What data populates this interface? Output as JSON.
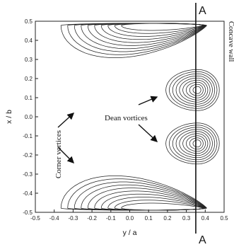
{
  "chart_data": {
    "type": "contour",
    "xlabel": "y / a",
    "ylabel": "x / b",
    "xlim": [
      -0.5,
      0.5
    ],
    "ylim": [
      -0.5,
      0.5
    ],
    "x_ticks": [
      "-0.5",
      "-0.4",
      "-0.3",
      "-0.2",
      "-0.1",
      "0.0",
      "0.1",
      "0.2",
      "0.3",
      "0.4",
      "0.5"
    ],
    "y_ticks": [
      "0.5",
      "0.4",
      "0.3",
      "0.2",
      "0.1",
      "0.0",
      "-0.1",
      "-0.2",
      "-0.3",
      "-0.4",
      "-0.5"
    ],
    "grid": false,
    "section_line": {
      "y_over_a": 0.35,
      "label_top": "A",
      "label_bottom": "A"
    },
    "wall_label": "Concave wall",
    "annotations": [
      {
        "text": "Corner vortices",
        "orientation": "vertical"
      },
      {
        "text": "Dean vortices",
        "orientation": "horizontal"
      }
    ],
    "vortex_centers": [
      {
        "name": "corner-vortex-upper",
        "y_over_a": 0.2,
        "x_over_b": 0.42
      },
      {
        "name": "corner-vortex-lower",
        "y_over_a": 0.2,
        "x_over_b": -0.42
      },
      {
        "name": "dean-vortex-upper",
        "y_over_a": 0.36,
        "x_over_b": 0.14
      },
      {
        "name": "dean-vortex-lower",
        "y_over_a": 0.36,
        "x_over_b": -0.14
      }
    ],
    "contour_levels": {
      "corner": 10,
      "dean": 9
    }
  },
  "colors": {
    "line": "#222222",
    "background": "#ffffff"
  }
}
